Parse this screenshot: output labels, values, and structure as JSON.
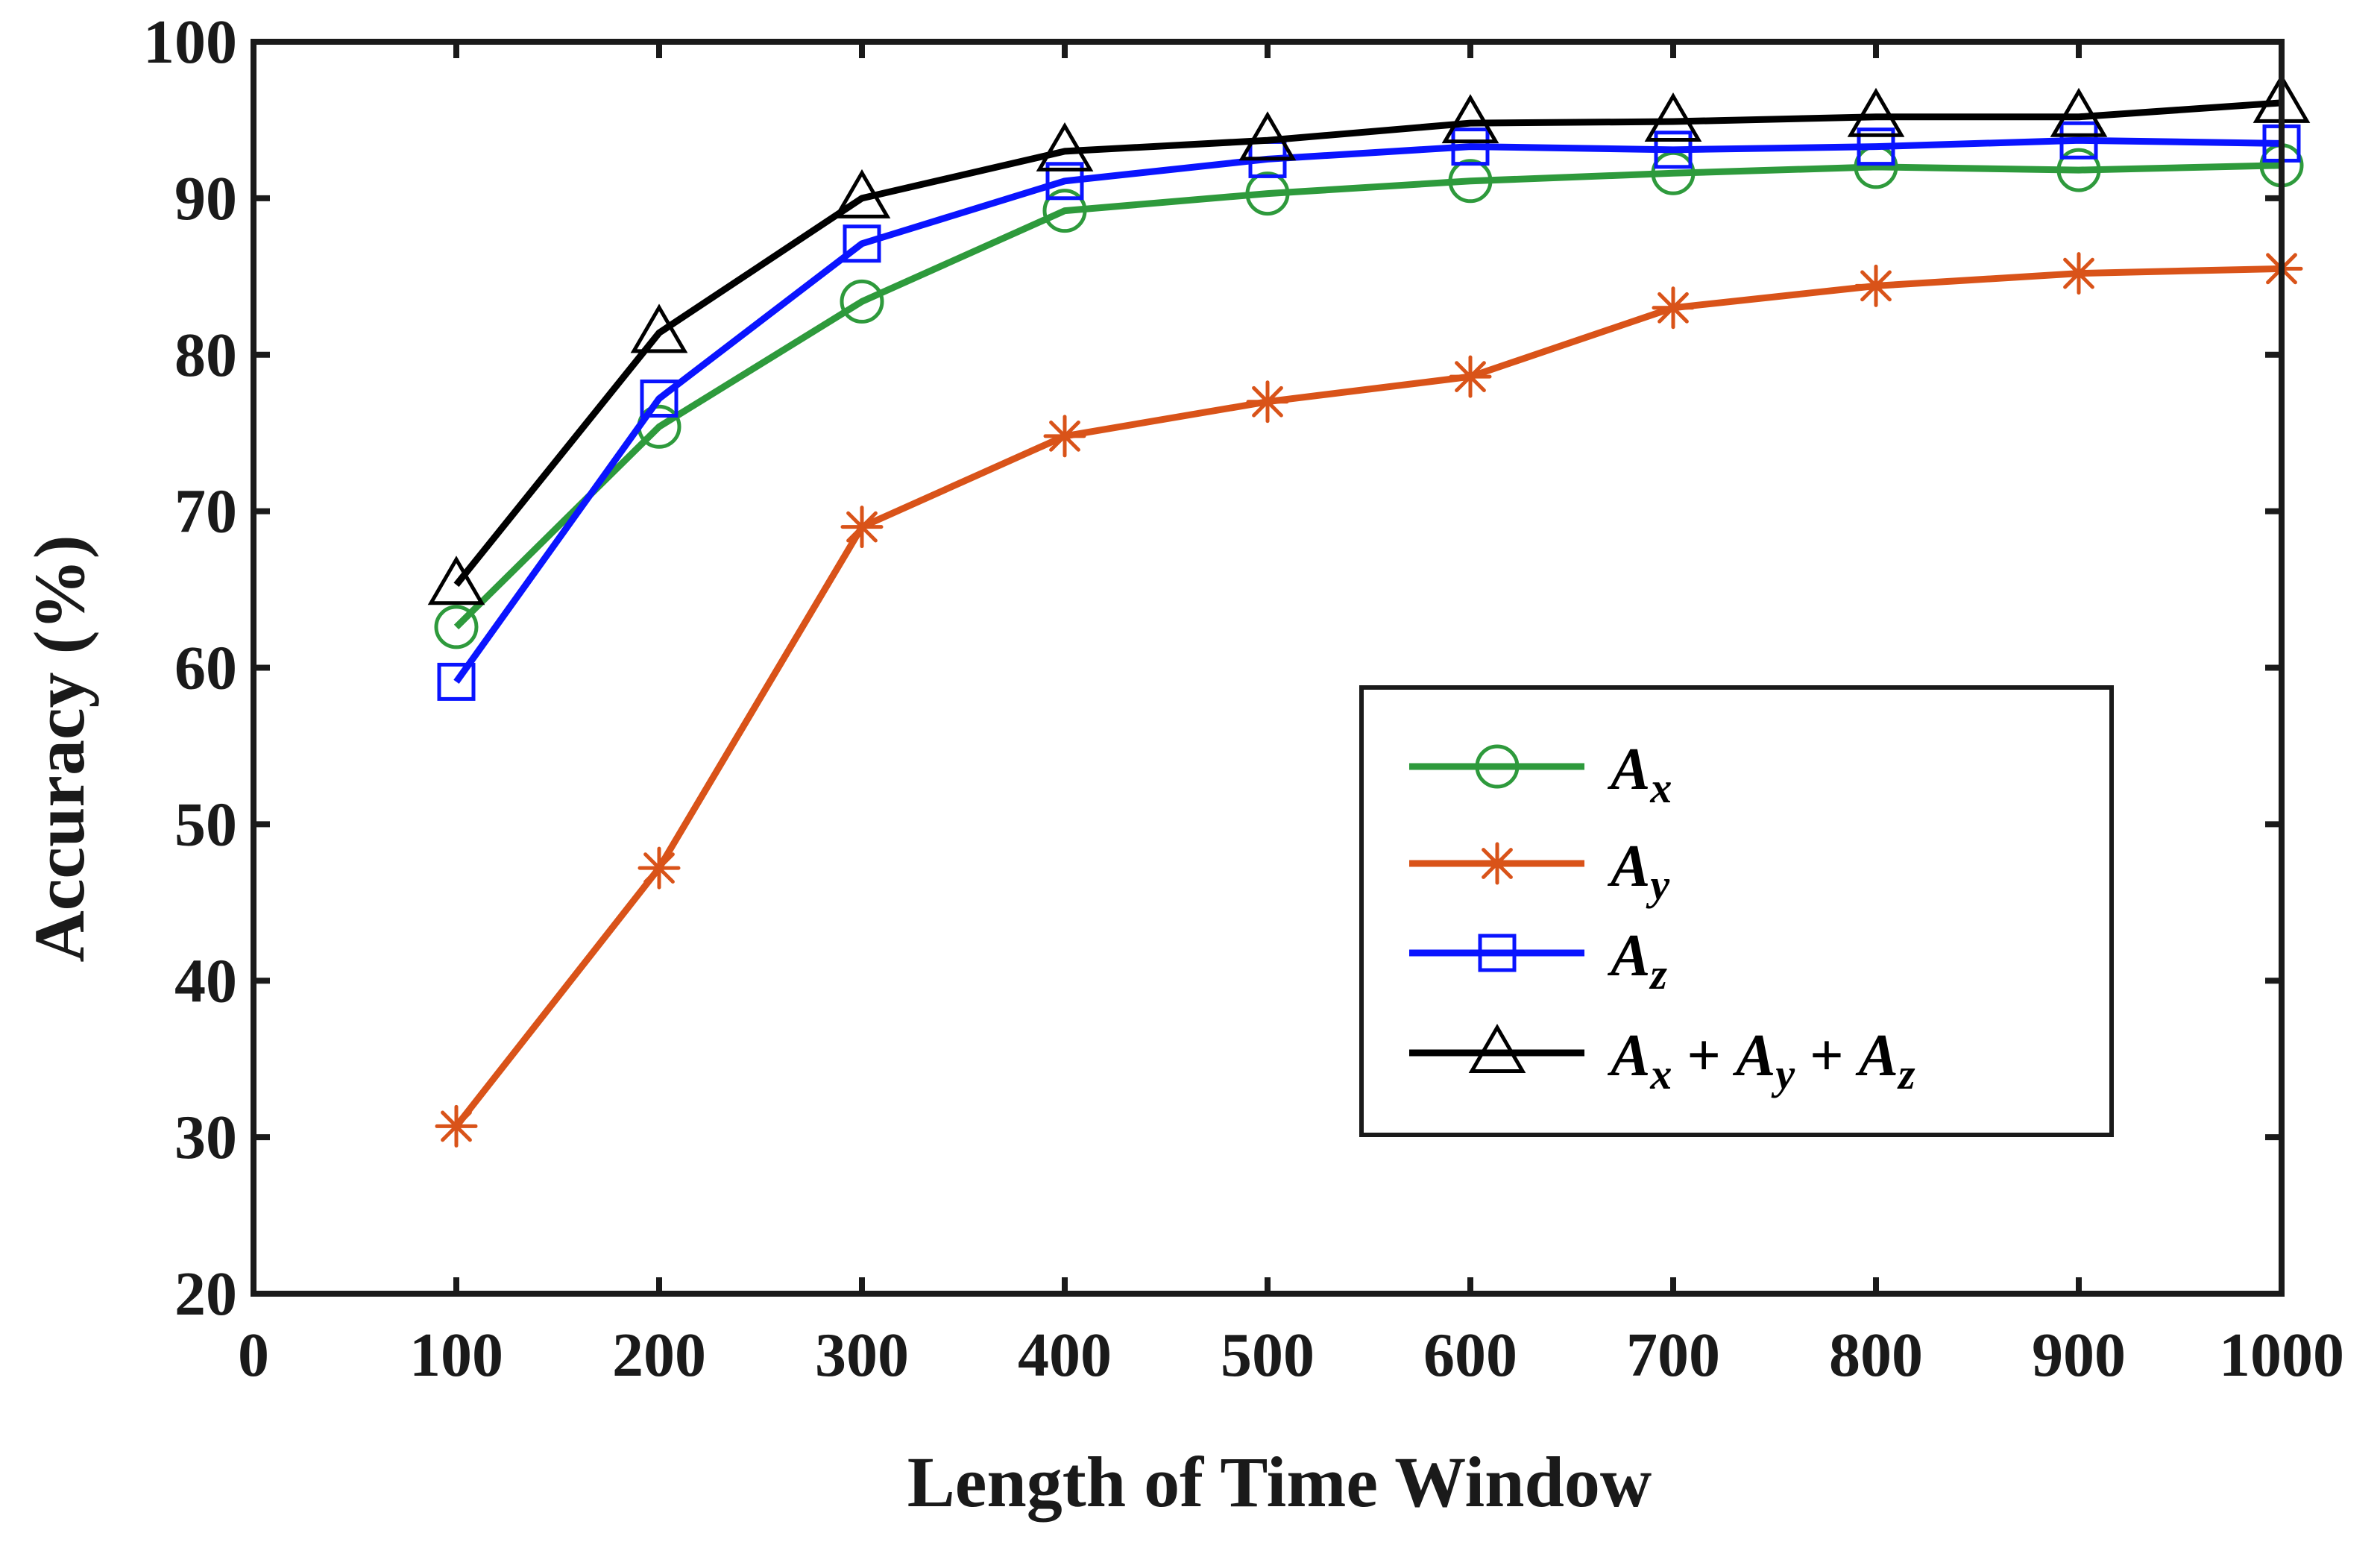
{
  "chart_data": {
    "type": "line",
    "title": "",
    "xlabel": "Length of Time Window",
    "ylabel": "Accuracy (%)",
    "xlim": [
      0,
      1000
    ],
    "ylim": [
      20,
      100
    ],
    "x_ticks": [
      0,
      100,
      200,
      300,
      400,
      500,
      600,
      700,
      800,
      900,
      1000
    ],
    "y_ticks": [
      20,
      30,
      40,
      50,
      60,
      70,
      80,
      90,
      100
    ],
    "grid": false,
    "legend_position": "center-right",
    "x": [
      100,
      200,
      300,
      400,
      500,
      600,
      700,
      800,
      900,
      1000
    ],
    "series": [
      {
        "name": "A_x",
        "label_main": "A",
        "label_sub": "x",
        "color": "#2e9a3c",
        "marker": "circle",
        "values": [
          62.6,
          75.4,
          83.4,
          89.2,
          90.3,
          91.1,
          91.6,
          92.0,
          91.8,
          92.1
        ]
      },
      {
        "name": "A_y",
        "label_main": "A",
        "label_sub": "y",
        "color": "#d95319",
        "marker": "asterisk",
        "values": [
          30.7,
          47.2,
          69.0,
          74.8,
          77.0,
          78.6,
          83.0,
          84.4,
          85.2,
          85.5
        ]
      },
      {
        "name": "A_z",
        "label_main": "A",
        "label_sub": "z",
        "color": "#0a14ff",
        "marker": "square",
        "values": [
          59.1,
          77.2,
          87.1,
          91.1,
          92.5,
          93.3,
          93.1,
          93.3,
          93.7,
          93.5
        ]
      },
      {
        "name": "A_x + A_y + A_z",
        "label_main": "A",
        "label_sub": "x",
        "color": "#000000",
        "marker": "triangle",
        "values": [
          65.3,
          81.4,
          90.0,
          93.0,
          93.7,
          94.8,
          94.9,
          95.2,
          95.2,
          96.1
        ]
      }
    ],
    "legend_combo": {
      "a1": "A",
      "s1": "x",
      "plus1": "+",
      "a2": "A",
      "s2": "y",
      "plus2": "+",
      "a3": "A",
      "s3": "z"
    }
  }
}
